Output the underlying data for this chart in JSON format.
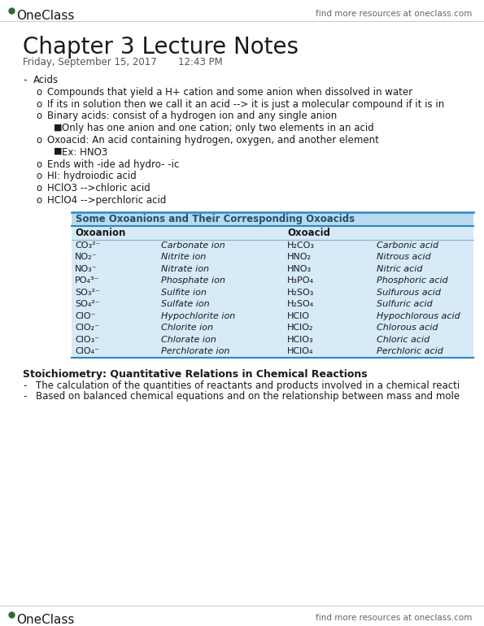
{
  "title": "Chapter 3 Lecture Notes",
  "date_line": "Friday, September 15, 2017       12:43 PM",
  "header_right": "find more resources at oneclass.com",
  "footer_right": "find more resources at oneclass.com",
  "background_color": "#ffffff",
  "table_header_bg": "#b8d9f0",
  "table_header_text": "#1a5276",
  "table_bg": "#d6eaf8",
  "table_border": "#2e86c1",
  "body_lines": [
    {
      "indent": 0,
      "bullet": "-",
      "text": "Acids"
    },
    {
      "indent": 1,
      "bullet": "o",
      "text": "Compounds that yield a H+ cation and some anion when dissolved in water"
    },
    {
      "indent": 1,
      "bullet": "o",
      "text": "If its in solution then we call it an acid --> it is just a molecular compound if it is in"
    },
    {
      "indent": 1,
      "bullet": "o",
      "text": "Binary acids: consist of a hydrogen ion and any single anion"
    },
    {
      "indent": 2,
      "bullet": "■",
      "text": "Only has one anion and one cation; only two elements in an acid"
    },
    {
      "indent": 1,
      "bullet": "o",
      "text": "Oxoacid: An acid containing hydrogen, oxygen, and another element"
    },
    {
      "indent": 2,
      "bullet": "■",
      "text": "Ex: HNO3"
    },
    {
      "indent": 1,
      "bullet": "o",
      "text": "Ends with -ide ad hydro- -ic"
    },
    {
      "indent": 1,
      "bullet": "o",
      "text": "HI: hydroiodic acid"
    },
    {
      "indent": 1,
      "bullet": "o",
      "text": "HClO3 -->chloric acid"
    },
    {
      "indent": 1,
      "bullet": "o",
      "text": "HClO4 -->perchloric acid"
    }
  ],
  "table_title": "Some Oxoanions and Their Corresponding Oxoacids",
  "table_rows": [
    [
      "CO₃²⁻",
      "Carbonate ion",
      "H₂CO₃",
      "Carbonic acid"
    ],
    [
      "NO₂⁻",
      "Nitrite ion",
      "HNO₂",
      "Nitrous acid"
    ],
    [
      "NO₃⁻",
      "Nitrate ion",
      "HNO₃",
      "Nitric acid"
    ],
    [
      "PO₄³⁻",
      "Phosphate ion",
      "H₃PO₄",
      "Phosphoric acid"
    ],
    [
      "SO₃²⁻",
      "Sulfite ion",
      "H₂SO₃",
      "Sulfurous acid"
    ],
    [
      "SO₄²⁻",
      "Sulfate ion",
      "H₂SO₄",
      "Sulfuric acid"
    ],
    [
      "ClO⁻",
      "Hypochlorite ion",
      "HClO",
      "Hypochlorous acid"
    ],
    [
      "ClO₂⁻",
      "Chlorite ion",
      "HClO₂",
      "Chlorous acid"
    ],
    [
      "ClO₃⁻",
      "Chlorate ion",
      "HClO₃",
      "Chloric acid"
    ],
    [
      "ClO₄⁻",
      "Perchlorate ion",
      "HClO₄",
      "Perchloric acid"
    ]
  ],
  "italic_col1": [
    0,
    1,
    2,
    3,
    4,
    5,
    6,
    7,
    8,
    9
  ],
  "italic_col3": [
    0,
    1,
    2,
    3,
    4,
    5,
    6,
    7,
    8,
    9
  ],
  "footer_lines": [
    {
      "bold": true,
      "text": "Stoichiometry: Quantitative Relations in Chemical Reactions"
    },
    {
      "indent": 1,
      "bullet": "-",
      "text": "The calculation of the quantities of reactants and products involved in a chemical reacti"
    },
    {
      "indent": 1,
      "bullet": "-",
      "text": "Based on balanced chemical equations and on the relationship between mass and mole"
    }
  ]
}
